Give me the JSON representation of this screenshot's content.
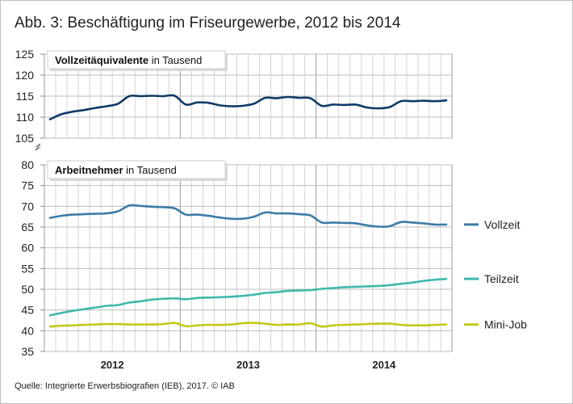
{
  "title": "Abb. 3: Beschäftigung im Friseurgewerbe, 2012 bis 2014",
  "source": "Quelle: Integrierte Erwerbsbiografien (IEB), 2017. © IAB",
  "chart_data": [
    {
      "type": "line",
      "panel": "top",
      "title_bold": "Vollzeitäquivalente",
      "title_rest": " in Tausend",
      "ylim": [
        105,
        125
      ],
      "yticks": [
        105,
        110,
        115,
        120,
        125
      ],
      "x_year_labels": [
        "2012",
        "2013",
        "2014"
      ],
      "x_months": 36,
      "series": [
        {
          "name": "Vollzeitäquivalente",
          "color": "#0d3b66",
          "values": [
            109.5,
            110.7,
            111.3,
            111.7,
            112.2,
            112.6,
            113.2,
            115.0,
            115.0,
            115.1,
            115.0,
            115.1,
            113.0,
            113.5,
            113.4,
            112.8,
            112.6,
            112.7,
            113.2,
            114.6,
            114.5,
            114.8,
            114.6,
            114.5,
            112.7,
            113.0,
            112.9,
            113.0,
            112.3,
            112.1,
            112.4,
            113.8,
            113.8,
            113.9,
            113.8,
            114.0
          ]
        }
      ]
    },
    {
      "type": "line",
      "panel": "bottom",
      "title_bold": "Arbeitnehmer",
      "title_rest": " in Tausend",
      "ylim": [
        35,
        80
      ],
      "yticks": [
        35,
        40,
        45,
        50,
        55,
        60,
        65,
        70,
        75,
        80
      ],
      "x_year_labels": [
        "2012",
        "2013",
        "2014"
      ],
      "x_months": 36,
      "series": [
        {
          "name": "Vollzeit",
          "color": "#3a7ca5",
          "values": [
            67.2,
            67.7,
            68.0,
            68.1,
            68.2,
            68.3,
            68.8,
            70.2,
            70.1,
            69.9,
            69.8,
            69.5,
            68.0,
            68.0,
            67.7,
            67.3,
            67.0,
            67.0,
            67.5,
            68.5,
            68.3,
            68.3,
            68.1,
            67.8,
            66.1,
            66.1,
            66.0,
            65.9,
            65.4,
            65.1,
            65.2,
            66.2,
            66.1,
            65.9,
            65.6,
            65.6
          ]
        },
        {
          "name": "Teilzeit",
          "color": "#40b8ac",
          "values": [
            43.7,
            44.3,
            44.8,
            45.2,
            45.6,
            46.0,
            46.2,
            46.8,
            47.1,
            47.5,
            47.7,
            47.8,
            47.6,
            47.9,
            48.0,
            48.1,
            48.2,
            48.4,
            48.7,
            49.1,
            49.3,
            49.6,
            49.7,
            49.8,
            50.1,
            50.3,
            50.5,
            50.6,
            50.7,
            50.8,
            51.0,
            51.3,
            51.6,
            52.0,
            52.3,
            52.5
          ]
        },
        {
          "name": "Mini-Job",
          "color": "#c4c81a",
          "values": [
            41.0,
            41.2,
            41.3,
            41.4,
            41.5,
            41.6,
            41.6,
            41.5,
            41.5,
            41.5,
            41.6,
            41.9,
            41.1,
            41.3,
            41.4,
            41.4,
            41.5,
            41.8,
            41.9,
            41.7,
            41.4,
            41.5,
            41.5,
            41.8,
            41.0,
            41.3,
            41.4,
            41.5,
            41.6,
            41.7,
            41.7,
            41.4,
            41.3,
            41.3,
            41.4,
            41.5
          ]
        }
      ]
    }
  ]
}
